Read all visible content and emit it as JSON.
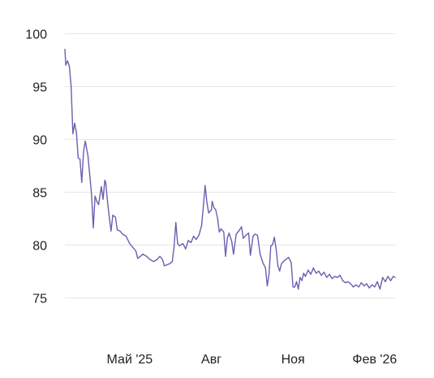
{
  "chart_data": {
    "type": "line",
    "title": "",
    "xlabel": "",
    "ylabel": "",
    "ylim": [
      73,
      100.7
    ],
    "y_ticks": [
      75,
      80,
      85,
      90,
      95,
      100
    ],
    "x_range": [
      "2025-02-17",
      "2026-02-24"
    ],
    "x_ticks": [
      {
        "date": "2025-05-01",
        "label": "Май '25"
      },
      {
        "date": "2025-08-01",
        "label": "Авг"
      },
      {
        "date": "2025-11-01",
        "label": "Ноя"
      },
      {
        "date": "2026-02-01",
        "label": "Фев '26"
      }
    ],
    "grid": "horizontal",
    "line_color": "#6b5fb0",
    "series": [
      {
        "points": [
          [
            "2025-02-17",
            98.5
          ],
          [
            "2025-02-18",
            97.0
          ],
          [
            "2025-02-20",
            97.4
          ],
          [
            "2025-02-22",
            96.9
          ],
          [
            "2025-02-24",
            95.0
          ],
          [
            "2025-02-26",
            90.5
          ],
          [
            "2025-02-28",
            91.5
          ],
          [
            "2025-03-02",
            90.6
          ],
          [
            "2025-03-04",
            88.2
          ],
          [
            "2025-03-06",
            88.1
          ],
          [
            "2025-03-08",
            85.9
          ],
          [
            "2025-03-10",
            88.8
          ],
          [
            "2025-03-12",
            89.8
          ],
          [
            "2025-03-15",
            88.4
          ],
          [
            "2025-03-17",
            86.6
          ],
          [
            "2025-03-19",
            84.8
          ],
          [
            "2025-03-21",
            81.6
          ],
          [
            "2025-03-23",
            84.6
          ],
          [
            "2025-03-25",
            84.1
          ],
          [
            "2025-03-27",
            83.8
          ],
          [
            "2025-03-30",
            85.5
          ],
          [
            "2025-04-01",
            84.3
          ],
          [
            "2025-04-03",
            86.1
          ],
          [
            "2025-04-04",
            85.9
          ],
          [
            "2025-04-06",
            84.1
          ],
          [
            "2025-04-08",
            82.6
          ],
          [
            "2025-04-10",
            81.3
          ],
          [
            "2025-04-12",
            82.8
          ],
          [
            "2025-04-15",
            82.6
          ],
          [
            "2025-04-17",
            81.4
          ],
          [
            "2025-04-20",
            81.3
          ],
          [
            "2025-04-23",
            81.0
          ],
          [
            "2025-04-27",
            80.8
          ],
          [
            "2025-05-01",
            80.1
          ],
          [
            "2025-05-05",
            79.7
          ],
          [
            "2025-05-08",
            79.4
          ],
          [
            "2025-05-10",
            78.7
          ],
          [
            "2025-05-13",
            78.9
          ],
          [
            "2025-05-16",
            79.1
          ],
          [
            "2025-05-20",
            78.9
          ],
          [
            "2025-05-24",
            78.6
          ],
          [
            "2025-05-28",
            78.4
          ],
          [
            "2025-06-01",
            78.6
          ],
          [
            "2025-06-04",
            78.9
          ],
          [
            "2025-06-07",
            78.6
          ],
          [
            "2025-06-09",
            78.0
          ],
          [
            "2025-06-12",
            78.1
          ],
          [
            "2025-06-15",
            78.2
          ],
          [
            "2025-06-18",
            78.4
          ],
          [
            "2025-06-20",
            79.8
          ],
          [
            "2025-06-22",
            82.1
          ],
          [
            "2025-06-24",
            80.1
          ],
          [
            "2025-06-26",
            79.9
          ],
          [
            "2025-06-30",
            80.1
          ],
          [
            "2025-07-03",
            79.6
          ],
          [
            "2025-07-06",
            80.4
          ],
          [
            "2025-07-09",
            80.2
          ],
          [
            "2025-07-12",
            80.8
          ],
          [
            "2025-07-15",
            80.5
          ],
          [
            "2025-07-18",
            80.9
          ],
          [
            "2025-07-21",
            81.8
          ],
          [
            "2025-07-23",
            83.6
          ],
          [
            "2025-07-25",
            85.6
          ],
          [
            "2025-07-27",
            84.0
          ],
          [
            "2025-07-29",
            83.0
          ],
          [
            "2025-08-01",
            83.3
          ],
          [
            "2025-08-02",
            84.1
          ],
          [
            "2025-08-04",
            83.5
          ],
          [
            "2025-08-06",
            83.3
          ],
          [
            "2025-08-08",
            82.5
          ],
          [
            "2025-08-10",
            81.2
          ],
          [
            "2025-08-12",
            81.5
          ],
          [
            "2025-08-15",
            81.2
          ],
          [
            "2025-08-17",
            78.9
          ],
          [
            "2025-08-19",
            80.6
          ],
          [
            "2025-08-21",
            81.1
          ],
          [
            "2025-08-24",
            80.3
          ],
          [
            "2025-08-26",
            79.1
          ],
          [
            "2025-08-29",
            81.0
          ],
          [
            "2025-09-01",
            81.3
          ],
          [
            "2025-09-04",
            81.7
          ],
          [
            "2025-09-06",
            80.6
          ],
          [
            "2025-09-09",
            80.9
          ],
          [
            "2025-09-12",
            81.1
          ],
          [
            "2025-09-14",
            79.0
          ],
          [
            "2025-09-17",
            80.8
          ],
          [
            "2025-09-19",
            81.0
          ],
          [
            "2025-09-22",
            80.9
          ],
          [
            "2025-09-25",
            79.1
          ],
          [
            "2025-09-28",
            78.3
          ],
          [
            "2025-10-01",
            77.8
          ],
          [
            "2025-10-03",
            76.1
          ],
          [
            "2025-10-05",
            77.2
          ],
          [
            "2025-10-07",
            79.9
          ],
          [
            "2025-10-09",
            80.0
          ],
          [
            "2025-10-11",
            80.7
          ],
          [
            "2025-10-13",
            79.6
          ],
          [
            "2025-10-15",
            78.0
          ],
          [
            "2025-10-17",
            77.5
          ],
          [
            "2025-10-19",
            78.2
          ],
          [
            "2025-10-21",
            78.4
          ],
          [
            "2025-10-24",
            78.6
          ],
          [
            "2025-10-27",
            78.8
          ],
          [
            "2025-10-30",
            78.3
          ],
          [
            "2025-11-01",
            76.0
          ],
          [
            "2025-11-03",
            76.0
          ],
          [
            "2025-11-05",
            76.5
          ],
          [
            "2025-11-07",
            75.8
          ],
          [
            "2025-11-09",
            76.9
          ],
          [
            "2025-11-11",
            76.6
          ],
          [
            "2025-11-13",
            77.3
          ],
          [
            "2025-11-15",
            77.0
          ],
          [
            "2025-11-18",
            77.6
          ],
          [
            "2025-11-21",
            77.2
          ],
          [
            "2025-11-24",
            77.8
          ],
          [
            "2025-11-27",
            77.3
          ],
          [
            "2025-11-30",
            77.5
          ],
          [
            "2025-12-03",
            77.1
          ],
          [
            "2025-12-06",
            77.4
          ],
          [
            "2025-12-09",
            76.9
          ],
          [
            "2025-12-12",
            77.2
          ],
          [
            "2025-12-15",
            76.8
          ],
          [
            "2025-12-18",
            77.0
          ],
          [
            "2025-12-21",
            76.9
          ],
          [
            "2025-12-24",
            77.1
          ],
          [
            "2025-12-27",
            76.6
          ],
          [
            "2025-12-30",
            76.4
          ],
          [
            "2026-01-02",
            76.5
          ],
          [
            "2026-01-05",
            76.3
          ],
          [
            "2026-01-08",
            76.0
          ],
          [
            "2026-01-11",
            76.2
          ],
          [
            "2026-01-14",
            76.0
          ],
          [
            "2026-01-17",
            76.4
          ],
          [
            "2026-01-20",
            76.1
          ],
          [
            "2026-01-23",
            76.3
          ],
          [
            "2026-01-26",
            75.9
          ],
          [
            "2026-01-29",
            76.2
          ],
          [
            "2026-02-01",
            76.0
          ],
          [
            "2026-02-04",
            76.5
          ],
          [
            "2026-02-07",
            75.8
          ],
          [
            "2026-02-10",
            76.9
          ],
          [
            "2026-02-13",
            76.5
          ],
          [
            "2026-02-16",
            77.0
          ],
          [
            "2026-02-19",
            76.6
          ],
          [
            "2026-02-22",
            77.0
          ],
          [
            "2026-02-24",
            76.9
          ]
        ]
      }
    ]
  }
}
